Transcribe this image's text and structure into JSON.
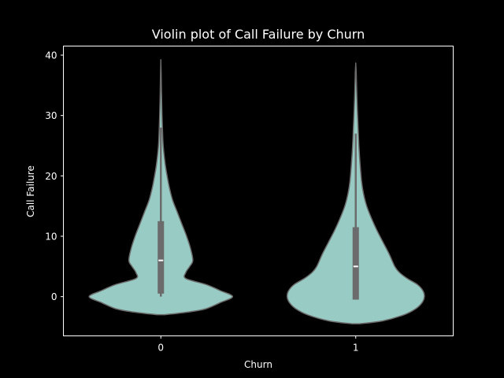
{
  "chart_data": {
    "type": "violin",
    "title": "Violin plot of Call Failure by Churn",
    "xlabel": "Churn",
    "ylabel": "Call Failure",
    "categories": [
      "0",
      "1"
    ],
    "ylim": [
      -6.5,
      41.5
    ],
    "yticks": [
      0,
      10,
      20,
      30,
      40
    ],
    "grid": false,
    "colors": {
      "background": "#000000",
      "violin_fill": "#97CBC3",
      "violin_edge": "#6B6B6B",
      "box": "#6B6B6B",
      "median": "#FFFFFF",
      "text": "#FFFFFF"
    },
    "violins": [
      {
        "category": "0",
        "box": {
          "whisker_low": 0,
          "q1": 0.5,
          "median": 6,
          "q3": 12.5,
          "whisker_high": 28
        },
        "density": [
          [
            -3.0,
            0.05
          ],
          [
            -2.5,
            0.38
          ],
          [
            -2.0,
            0.58
          ],
          [
            -1.0,
            0.76
          ],
          [
            0.0,
            0.92
          ],
          [
            1.0,
            0.76
          ],
          [
            2.0,
            0.58
          ],
          [
            3.0,
            0.32
          ],
          [
            4.0,
            0.32
          ],
          [
            5.0,
            0.37
          ],
          [
            6.0,
            0.41
          ],
          [
            8.0,
            0.38
          ],
          [
            10.0,
            0.33
          ],
          [
            12.0,
            0.27
          ],
          [
            14.0,
            0.21
          ],
          [
            16.0,
            0.15
          ],
          [
            18.0,
            0.11
          ],
          [
            20.0,
            0.08
          ],
          [
            22.0,
            0.055
          ],
          [
            25.0,
            0.03
          ],
          [
            28.0,
            0.02
          ],
          [
            31.0,
            0.013
          ],
          [
            34.0,
            0.008
          ],
          [
            37.0,
            0.004
          ],
          [
            39.0,
            0.0
          ]
        ]
      },
      {
        "category": "1",
        "box": {
          "whisker_low": -0.5,
          "q1": -0.5,
          "median": 5,
          "q3": 11.5,
          "whisker_high": 27
        },
        "density": [
          [
            -4.5,
            0.05
          ],
          [
            -4.0,
            0.35
          ],
          [
            -3.0,
            0.62
          ],
          [
            -2.0,
            0.77
          ],
          [
            -1.0,
            0.85
          ],
          [
            0.0,
            0.88
          ],
          [
            1.0,
            0.86
          ],
          [
            2.0,
            0.79
          ],
          [
            3.0,
            0.66
          ],
          [
            4.0,
            0.56
          ],
          [
            5.0,
            0.5
          ],
          [
            7.0,
            0.43
          ],
          [
            9.0,
            0.35
          ],
          [
            11.0,
            0.27
          ],
          [
            13.0,
            0.2
          ],
          [
            15.0,
            0.14
          ],
          [
            17.0,
            0.1
          ],
          [
            19.0,
            0.075
          ],
          [
            22.0,
            0.055
          ],
          [
            25.0,
            0.04
          ],
          [
            28.0,
            0.03
          ],
          [
            31.0,
            0.02
          ],
          [
            34.0,
            0.012
          ],
          [
            37.0,
            0.006
          ],
          [
            38.5,
            0.0
          ]
        ]
      }
    ]
  }
}
